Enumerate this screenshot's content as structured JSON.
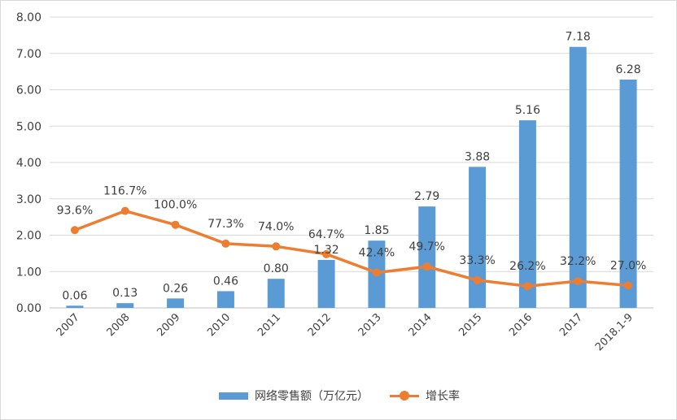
{
  "chart_data": {
    "type": "bar",
    "categories": [
      "2007",
      "2008",
      "2009",
      "2010",
      "2011",
      "2012",
      "2013",
      "2014",
      "2015",
      "2016",
      "2017",
      "2018.1-9"
    ],
    "ylim": [
      0,
      8
    ],
    "yticks": [
      "0.00",
      "1.00",
      "2.00",
      "3.00",
      "4.00",
      "5.00",
      "6.00",
      "7.00",
      "8.00"
    ],
    "grid": true,
    "legend_position": "bottom",
    "series": [
      {
        "name": "网络零售额（万亿元）",
        "type": "bar",
        "color": "#5b9bd5",
        "values": [
          0.06,
          0.13,
          0.26,
          0.46,
          0.8,
          1.32,
          1.85,
          2.79,
          3.88,
          5.16,
          7.18,
          6.28
        ],
        "labels": [
          "0.06",
          "0.13",
          "0.26",
          "0.46",
          "0.80",
          "1.32",
          "1.85",
          "2.79",
          "3.88",
          "5.16",
          "7.18",
          "6.28"
        ]
      },
      {
        "name": "增长率",
        "type": "line",
        "color": "#ed7d31",
        "values": [
          93.6,
          116.7,
          100.0,
          77.3,
          74.0,
          64.7,
          42.4,
          49.7,
          33.3,
          26.2,
          32.2,
          27.0
        ],
        "labels": [
          "93.6%",
          "116.7%",
          "100.0%",
          "77.3%",
          "74.0%",
          "64.7%",
          "42.4%",
          "49.7%",
          "33.3%",
          "26.2%",
          "32.2%",
          "27.0%"
        ]
      }
    ]
  }
}
